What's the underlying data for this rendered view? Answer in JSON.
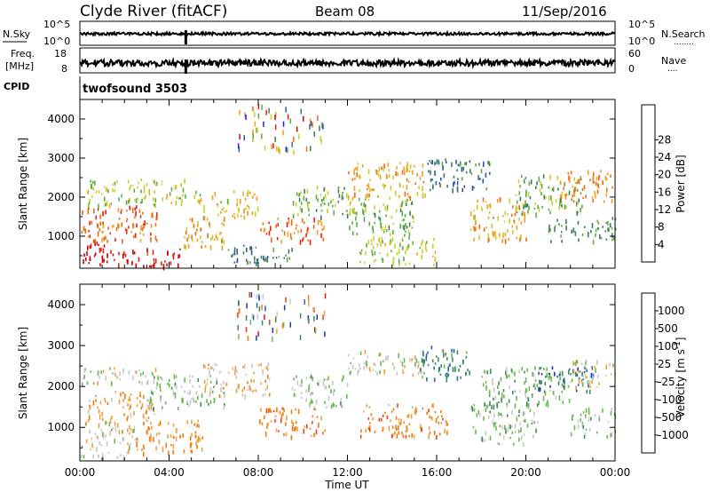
{
  "header": {
    "station": "Clyde River (fitACF)",
    "beam": "Beam 08",
    "date": "11/Sep/2016"
  },
  "noise_panel": {
    "left_label": "N.Sky",
    "right_label": "N.Search",
    "right_dots": "........",
    "left_ticks": [
      "10^5",
      "10^0"
    ],
    "right_ticks": [
      "10^5",
      "10^0"
    ]
  },
  "freq_panel": {
    "left_label_1": "Freq.",
    "left_label_2": "[MHz]",
    "right_label": "Nave",
    "right_dots": "....",
    "left_ticks": [
      "18",
      "8"
    ],
    "right_ticks": [
      "60",
      "0"
    ]
  },
  "cpid": {
    "label": "CPID",
    "mode": "twofsound 3503"
  },
  "colors": {
    "power_scale": [
      "#1a1aff",
      "#2855a8",
      "#3e7d5a",
      "#5eab44",
      "#c8cf2a",
      "#f0a020",
      "#f06a10",
      "#e82010",
      "#c80000"
    ],
    "velocity_scale": [
      "#e81010",
      "#f04010",
      "#f07a10",
      "#f0a040",
      "#c8c8c8",
      "#6cb850",
      "#3e8a5c",
      "#2a6aa0",
      "#1838b0"
    ]
  },
  "chart_data": [
    {
      "type": "heatmap",
      "parameter": "power",
      "ylabel": "Slant Range [km]",
      "xlabel": "",
      "x_ticks": [
        "00:00",
        "04:00",
        "08:00",
        "12:00",
        "16:00",
        "20:00",
        "00:00"
      ],
      "y_ticks": [
        1000,
        2000,
        3000,
        4000
      ],
      "ylim": [
        180,
        4500
      ],
      "colorbar": {
        "label": "Power [dB]",
        "ticks": [
          "4",
          "8",
          "12",
          "16",
          "20",
          "24",
          "28"
        ],
        "range": [
          0,
          30
        ]
      },
      "regions": [
        {
          "t0": 0.0,
          "t1": 1.5,
          "r0": 250,
          "r1": 900,
          "value": 28
        },
        {
          "t0": 0.0,
          "t1": 3.5,
          "r0": 900,
          "r1": 1800,
          "value": 22
        },
        {
          "t0": 1.5,
          "t1": 4.5,
          "r0": 250,
          "r1": 700,
          "value": 26
        },
        {
          "t0": 0.3,
          "t1": 4.8,
          "r0": 1800,
          "r1": 2500,
          "value": 14
        },
        {
          "t0": 4.5,
          "t1": 6.5,
          "r0": 700,
          "r1": 1500,
          "value": 18
        },
        {
          "t0": 5.0,
          "t1": 8.0,
          "r0": 1500,
          "r1": 2200,
          "value": 16
        },
        {
          "t0": 6.5,
          "t1": 9.5,
          "r0": 300,
          "r1": 800,
          "value": 8
        },
        {
          "t0": 8.0,
          "t1": 11.0,
          "r0": 900,
          "r1": 1500,
          "value": 22
        },
        {
          "t0": 9.5,
          "t1": 12.0,
          "r0": 1500,
          "r1": 2300,
          "value": 12
        },
        {
          "t0": 12.0,
          "t1": 15.5,
          "r0": 2000,
          "r1": 2900,
          "value": 18
        },
        {
          "t0": 12.0,
          "t1": 15.0,
          "r0": 1000,
          "r1": 2000,
          "value": 12
        },
        {
          "t0": 12.5,
          "t1": 16.0,
          "r0": 300,
          "r1": 1000,
          "value": 14
        },
        {
          "t0": 15.5,
          "t1": 18.5,
          "r0": 2200,
          "r1": 3000,
          "value": 8
        },
        {
          "t0": 17.5,
          "t1": 20.0,
          "r0": 900,
          "r1": 2000,
          "value": 18
        },
        {
          "t0": 19.5,
          "t1": 22.5,
          "r0": 1600,
          "r1": 2600,
          "value": 12
        },
        {
          "t0": 21.5,
          "t1": 24.0,
          "r0": 1900,
          "r1": 2700,
          "value": 20
        },
        {
          "t0": 21.0,
          "t1": 24.0,
          "r0": 900,
          "r1": 1500,
          "value": 10
        }
      ]
    },
    {
      "type": "heatmap",
      "parameter": "velocity",
      "ylabel": "Slant Range [km]",
      "xlabel": "Time UT",
      "x_ticks": [
        "00:00",
        "04:00",
        "08:00",
        "12:00",
        "16:00",
        "20:00",
        "00:00"
      ],
      "y_ticks": [
        1000,
        2000,
        3000,
        4000
      ],
      "ylim": [
        180,
        4500
      ],
      "colorbar": {
        "label": "Velocity [m s^-1]",
        "ticks": [
          "1000",
          "500",
          "100",
          "25",
          "-25",
          "-100",
          "-500",
          "-1000"
        ],
        "range": [
          -1200,
          1200
        ]
      },
      "regions": [
        {
          "t0": 0.0,
          "t1": 3.5,
          "r0": 2100,
          "r1": 2500,
          "value": 0
        },
        {
          "t0": 0.0,
          "t1": 2.5,
          "r0": 300,
          "r1": 1200,
          "value": 0
        },
        {
          "t0": 0.3,
          "t1": 3.5,
          "r0": 1200,
          "r1": 1900,
          "value": -300
        },
        {
          "t0": 3.0,
          "t1": 6.5,
          "r0": 1500,
          "r1": 2300,
          "value": 200
        },
        {
          "t0": 2.5,
          "t1": 5.5,
          "r0": 400,
          "r1": 1200,
          "value": -400
        },
        {
          "t0": 5.5,
          "t1": 8.5,
          "r0": 1800,
          "r1": 2600,
          "value": -200
        },
        {
          "t0": 8.0,
          "t1": 11.0,
          "r0": 800,
          "r1": 1500,
          "value": -500
        },
        {
          "t0": 9.5,
          "t1": 12.0,
          "r0": 1500,
          "r1": 2300,
          "value": 150
        },
        {
          "t0": 12.0,
          "t1": 15.5,
          "r0": 2300,
          "r1": 2900,
          "value": 0
        },
        {
          "t0": 12.5,
          "t1": 16.5,
          "r0": 800,
          "r1": 1600,
          "value": -500
        },
        {
          "t0": 15.0,
          "t1": 17.5,
          "r0": 2200,
          "r1": 3000,
          "value": 600
        },
        {
          "t0": 17.5,
          "t1": 20.5,
          "r0": 600,
          "r1": 1600,
          "value": 200
        },
        {
          "t0": 18.0,
          "t1": 22.0,
          "r0": 1600,
          "r1": 2500,
          "value": 300
        },
        {
          "t0": 20.5,
          "t1": 23.0,
          "r0": 1900,
          "r1": 2500,
          "value": 800
        },
        {
          "t0": 22.0,
          "t1": 24.0,
          "r0": 2000,
          "r1": 2700,
          "value": 0
        },
        {
          "t0": 22.0,
          "t1": 24.0,
          "r0": 800,
          "r1": 1500,
          "value": 200
        }
      ]
    }
  ]
}
